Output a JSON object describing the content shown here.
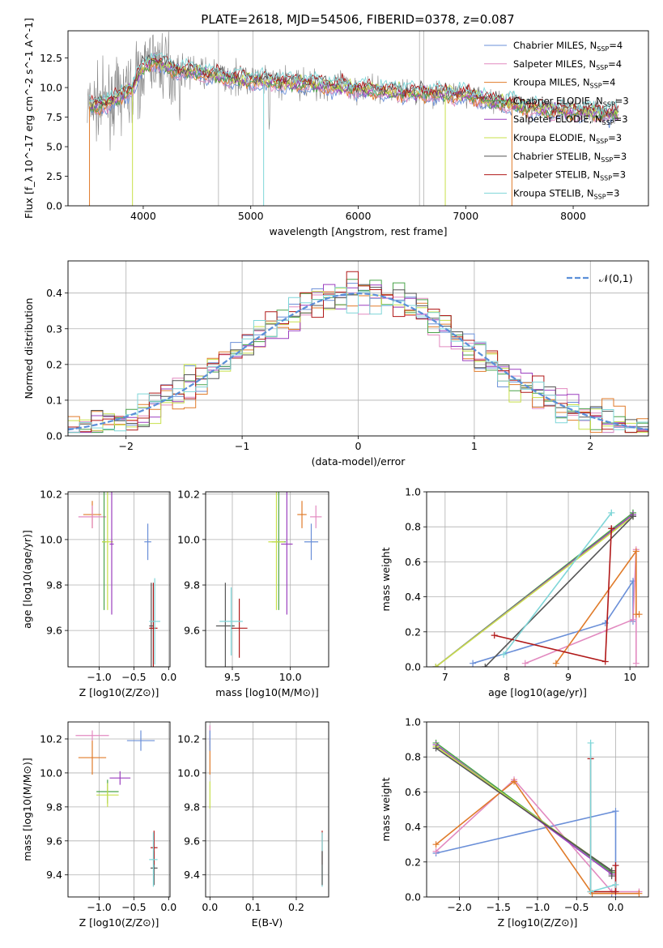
{
  "figure_title": "PLATE=2618, MJD=54506, FIBERID=0378, z=0.087",
  "colors": {
    "Chabrier MILES": "#6a8fd8",
    "Salpeter MILES": "#e28ac0",
    "Kroupa MILES": "#e07b2a",
    "Chabrier ELODIE": "#4aa34a",
    "Salpeter ELODIE": "#9b3fbf",
    "Kroupa ELODIE": "#c8e04a",
    "Chabrier STELIB": "#555555",
    "Salpeter STELIB": "#b01818",
    "Kroupa STELIB": "#7fd6d8",
    "data": "#808080",
    "normal": "#5b8fd8",
    "grid": "#b0b0b0"
  },
  "chart_data": [
    {
      "type": "line",
      "id": "spectrum",
      "title": "PLATE=2618, MJD=54506, FIBERID=0378, z=0.087",
      "xlabel": "wavelength [Angstrom, rest frame]",
      "ylabel": "Flux [f_λ 10^-17 erg cm^-2 s^-1 A^-1]",
      "xlim": [
        3300,
        8700
      ],
      "ylim": [
        0,
        14.8
      ],
      "xticks": [
        4000,
        5000,
        6000,
        7000,
        8000
      ],
      "yticks": [
        0.0,
        2.5,
        5.0,
        7.5,
        10.0,
        12.5
      ],
      "grid": false,
      "legend_position": "upper right",
      "legend": [
        "Chabrier MILES, N_SSP=4",
        "Salpeter MILES, N_SSP=4",
        "Kroupa MILES, N_SSP=4",
        "Chabrier ELODIE, N_SSP=3",
        "Salpeter ELODIE, N_SSP=3",
        "Kroupa ELODIE, N_SSP=3",
        "Chabrier STELIB, N_SSP=3",
        "Salpeter STELIB, N_SSP=3",
        "Kroupa STELIB, N_SSP=3"
      ],
      "continuum": {
        "x": [
          3500,
          3700,
          3900,
          4000,
          4100,
          4300,
          4500,
          4800,
          5200,
          5600,
          6000,
          6400,
          6800,
          7000,
          7200,
          7400,
          7600,
          7800,
          8000,
          8200,
          8400
        ],
        "y": [
          8.4,
          8.8,
          10.0,
          11.8,
          12.3,
          11.5,
          11.3,
          10.8,
          10.5,
          10.3,
          9.9,
          9.6,
          9.5,
          9.4,
          8.9,
          8.7,
          8.3,
          8.1,
          8.0,
          7.9,
          7.8
        ]
      }
    },
    {
      "type": "histogram",
      "id": "residuals",
      "xlabel": "(data-model)/error",
      "ylabel": "Normed distribution",
      "xlim": [
        -2.5,
        2.5
      ],
      "ylim": [
        0,
        0.49
      ],
      "xticks": [
        -2,
        -1,
        0,
        1,
        2
      ],
      "yticks": [
        0.0,
        0.1,
        0.2,
        0.3,
        0.4
      ],
      "grid": true,
      "legend": [
        "𝒩(0,1)"
      ],
      "legend_position": "upper right",
      "normal": {
        "mean": 0,
        "sigma": 1
      }
    },
    {
      "type": "errorbar",
      "id": "age-vs-Z",
      "xlabel": "Z [log10(Z/Z⊙)]",
      "ylabel": "age  [log10(age/yr)]",
      "xlim": [
        -1.45,
        0.02
      ],
      "ylim": [
        9.44,
        10.21
      ],
      "xticks": [
        -1.0,
        -0.5,
        0.0
      ],
      "yticks": [
        9.6,
        9.8,
        10.0,
        10.2
      ],
      "points": [
        {
          "model": "Kroupa MILES",
          "x": -1.1,
          "y": 10.11,
          "xerr": 0.13,
          "yerr": 0.06
        },
        {
          "model": "Salpeter MILES",
          "x": -1.1,
          "y": 10.1,
          "xerr": 0.2,
          "yerr": 0.05
        },
        {
          "model": "Chabrier MILES",
          "x": -0.3,
          "y": 9.99,
          "xerr": 0.05,
          "yerr": 0.08
        },
        {
          "model": "Chabrier ELODIE",
          "x": -0.93,
          "y": 9.99,
          "xerr": 0.03,
          "yerr": 0.3
        },
        {
          "model": "Kroupa ELODIE",
          "x": -0.88,
          "y": 9.99,
          "xerr": 0.08,
          "yerr": 0.3
        },
        {
          "model": "Salpeter ELODIE",
          "x": -0.82,
          "y": 9.98,
          "xerr": 0.03,
          "yerr": 0.31
        },
        {
          "model": "Chabrier STELIB",
          "x": -0.25,
          "y": 9.62,
          "xerr": 0.03,
          "yerr": 0.19
        },
        {
          "model": "Salpeter STELIB",
          "x": -0.22,
          "y": 9.61,
          "xerr": 0.06,
          "yerr": 0.2
        },
        {
          "model": "Kroupa STELIB",
          "x": -0.2,
          "y": 9.64,
          "xerr": 0.08,
          "yerr": 0.19
        }
      ]
    },
    {
      "type": "errorbar",
      "id": "age-vs-mass",
      "xlabel": "mass [log10(M/M⊙)]",
      "ylabel": "",
      "xlim": [
        9.27,
        10.33
      ],
      "ylim": [
        9.44,
        10.21
      ],
      "xticks": [
        9.5,
        10.0
      ],
      "yticks": [
        9.6,
        9.8,
        10.0,
        10.2
      ],
      "points": [
        {
          "model": "Kroupa MILES",
          "x": 10.1,
          "y": 10.11,
          "xerr": 0.04,
          "yerr": 0.06
        },
        {
          "model": "Salpeter MILES",
          "x": 10.22,
          "y": 10.1,
          "xerr": 0.05,
          "yerr": 0.05
        },
        {
          "model": "Chabrier MILES",
          "x": 10.18,
          "y": 9.99,
          "xerr": 0.06,
          "yerr": 0.08
        },
        {
          "model": "Chabrier ELODIE",
          "x": 9.9,
          "y": 9.99,
          "xerr": 0.06,
          "yerr": 0.3
        },
        {
          "model": "Kroupa ELODIE",
          "x": 9.88,
          "y": 9.99,
          "xerr": 0.07,
          "yerr": 0.3
        },
        {
          "model": "Salpeter ELODIE",
          "x": 9.97,
          "y": 9.98,
          "xerr": 0.05,
          "yerr": 0.31
        },
        {
          "model": "Chabrier STELIB",
          "x": 9.44,
          "y": 9.62,
          "xerr": 0.08,
          "yerr": 0.19
        },
        {
          "model": "Salpeter STELIB",
          "x": 9.56,
          "y": 9.61,
          "xerr": 0.07,
          "yerr": 0.13
        },
        {
          "model": "Kroupa STELIB",
          "x": 9.49,
          "y": 9.64,
          "xerr": 0.1,
          "yerr": 0.15
        }
      ]
    },
    {
      "type": "line",
      "id": "weight-vs-age",
      "xlabel": "age  [log10(age/yr)]",
      "ylabel": "mass weight",
      "xlim": [
        6.7,
        10.3
      ],
      "ylim": [
        0,
        1
      ],
      "xticks": [
        7,
        8,
        9,
        10
      ],
      "yticks": [
        0.0,
        0.2,
        0.4,
        0.6,
        0.8,
        1.0
      ],
      "grid": true,
      "series": [
        {
          "model": "Chabrier MILES",
          "x": [
            7.45,
            9.6,
            10.05,
            10.05
          ],
          "y": [
            0.02,
            0.25,
            0.49,
            0.26
          ]
        },
        {
          "model": "Salpeter MILES",
          "x": [
            8.3,
            10.05,
            10.1,
            10.1
          ],
          "y": [
            0.02,
            0.27,
            0.67,
            0.02
          ]
        },
        {
          "model": "Kroupa MILES",
          "x": [
            8.8,
            10.1,
            10.1,
            10.15
          ],
          "y": [
            0.02,
            0.66,
            0.3,
            0.3
          ]
        },
        {
          "model": "Chabrier ELODIE",
          "x": [
            6.85,
            10.05,
            10.05
          ],
          "y": [
            0.0,
            0.88,
            0.88
          ]
        },
        {
          "model": "Salpeter ELODIE",
          "x": [
            6.85,
            10.05,
            10.05
          ],
          "y": [
            0.0,
            0.87,
            0.87
          ]
        },
        {
          "model": "Kroupa ELODIE",
          "x": [
            6.85,
            10.05,
            10.05
          ],
          "y": [
            0.0,
            0.86,
            0.86
          ]
        },
        {
          "model": "Chabrier STELIB",
          "x": [
            7.65,
            10.05,
            10.05
          ],
          "y": [
            0.0,
            0.86,
            0.86
          ]
        },
        {
          "model": "Salpeter STELIB",
          "x": [
            7.8,
            9.6,
            9.7,
            9.7
          ],
          "y": [
            0.18,
            0.03,
            0.79,
            0.79
          ]
        },
        {
          "model": "Kroupa STELIB",
          "x": [
            7.95,
            9.7,
            9.7
          ],
          "y": [
            0.07,
            0.88,
            0.88
          ]
        }
      ]
    },
    {
      "type": "errorbar",
      "id": "mass-vs-Z",
      "xlabel": "Z [log10(Z/Z⊙)]",
      "ylabel": "mass [log10(M/M⊙)]",
      "xlim": [
        -1.45,
        0.02
      ],
      "ylim": [
        9.27,
        10.3
      ],
      "xticks": [
        -1.0,
        -0.5,
        0.0
      ],
      "yticks": [
        9.4,
        9.6,
        9.8,
        10.0,
        10.2
      ],
      "points": [
        {
          "model": "Salpeter MILES",
          "x": -1.1,
          "y": 10.22,
          "xerr": 0.24,
          "yerr": 0.03
        },
        {
          "model": "Kroupa MILES",
          "x": -1.1,
          "y": 10.09,
          "xerr": 0.2,
          "yerr": 0.1
        },
        {
          "model": "Chabrier MILES",
          "x": -0.4,
          "y": 10.19,
          "xerr": 0.2,
          "yerr": 0.06
        },
        {
          "model": "Chabrier ELODIE",
          "x": -0.88,
          "y": 9.89,
          "xerr": 0.16,
          "yerr": 0.07
        },
        {
          "model": "Kroupa ELODIE",
          "x": -0.88,
          "y": 9.87,
          "xerr": 0.16,
          "yerr": 0.07
        },
        {
          "model": "Salpeter ELODIE",
          "x": -0.7,
          "y": 9.97,
          "xerr": 0.15,
          "yerr": 0.04
        },
        {
          "model": "Chabrier STELIB",
          "x": -0.21,
          "y": 9.44,
          "xerr": 0.05,
          "yerr": 0.1
        },
        {
          "model": "Salpeter STELIB",
          "x": -0.21,
          "y": 9.56,
          "xerr": 0.05,
          "yerr": 0.1
        },
        {
          "model": "Kroupa STELIB",
          "x": -0.22,
          "y": 9.49,
          "xerr": 0.06,
          "yerr": 0.16
        }
      ]
    },
    {
      "type": "errorbar",
      "id": "mass-vs-ebv",
      "xlabel": "E(B-V)",
      "ylabel": "",
      "xlim": [
        -0.01,
        0.275
      ],
      "ylim": [
        9.27,
        10.3
      ],
      "xticks": [
        0.0,
        0.1,
        0.2
      ],
      "yticks": [
        9.4,
        9.6,
        9.8,
        10.0,
        10.2
      ],
      "points": [
        {
          "model": "Salpeter MILES",
          "x": 0.0,
          "y": 10.22,
          "xerr": 0.0,
          "yerr": 0.06
        },
        {
          "model": "Kroupa MILES",
          "x": 0.0,
          "y": 10.09,
          "xerr": 0.0,
          "yerr": 0.1
        },
        {
          "model": "Chabrier MILES",
          "x": 0.0,
          "y": 10.19,
          "xerr": 0.0,
          "yerr": 0.06
        },
        {
          "model": "Kroupa ELODIE",
          "x": 0.0,
          "y": 9.87,
          "xerr": 0.0,
          "yerr": 0.08
        },
        {
          "model": "Salpeter STELIB",
          "x": 0.26,
          "y": 9.56,
          "xerr": 0.0,
          "yerr": 0.1
        },
        {
          "model": "Kroupa STELIB",
          "x": 0.26,
          "y": 9.49,
          "xerr": 0.0,
          "yerr": 0.16
        },
        {
          "model": "Chabrier STELIB",
          "x": 0.26,
          "y": 9.44,
          "xerr": 0.0,
          "yerr": 0.1
        }
      ]
    },
    {
      "type": "line",
      "id": "weight-vs-Z",
      "xlabel": "Z [log10(Z/Z⊙)]",
      "ylabel": "mass weight",
      "xlim": [
        -2.42,
        0.42
      ],
      "ylim": [
        0,
        1
      ],
      "xticks": [
        -2.0,
        -1.5,
        -1.0,
        -0.5,
        0.0
      ],
      "yticks": [
        0.0,
        0.2,
        0.4,
        0.6,
        0.8,
        1.0
      ],
      "grid": true,
      "series": [
        {
          "model": "Chabrier MILES",
          "x": [
            -2.3,
            0.0,
            0.0,
            -0.05
          ],
          "y": [
            0.25,
            0.49,
            0.02,
            0.02
          ]
        },
        {
          "model": "Salpeter MILES",
          "x": [
            -2.3,
            -1.3,
            -0.05,
            0.3
          ],
          "y": [
            0.26,
            0.67,
            0.03,
            0.03
          ]
        },
        {
          "model": "Kroupa MILES",
          "x": [
            -2.3,
            -1.3,
            -0.3,
            0.3
          ],
          "y": [
            0.3,
            0.66,
            0.02,
            0.02
          ]
        },
        {
          "model": "Chabrier ELODIE",
          "x": [
            -2.3,
            -0.05,
            -0.05
          ],
          "y": [
            0.88,
            0.14,
            0.14
          ]
        },
        {
          "model": "Salpeter ELODIE",
          "x": [
            -2.3,
            -0.05,
            -0.05
          ],
          "y": [
            0.87,
            0.13,
            0.13
          ]
        },
        {
          "model": "Kroupa ELODIE",
          "x": [
            -2.3,
            -0.05,
            -0.05
          ],
          "y": [
            0.86,
            0.15,
            0.15
          ]
        },
        {
          "model": "Chabrier STELIB",
          "x": [
            -2.3,
            -0.05,
            -0.05
          ],
          "y": [
            0.85,
            0.15,
            0.12
          ]
        },
        {
          "model": "Salpeter STELIB",
          "x": [
            -0.32,
            -0.32,
            0.0,
            0.0
          ],
          "y": [
            0.79,
            0.03,
            0.03,
            0.18
          ]
        },
        {
          "model": "Kroupa STELIB",
          "x": [
            -0.32,
            -0.32,
            0.0
          ],
          "y": [
            0.88,
            0.03,
            0.07
          ]
        }
      ]
    }
  ]
}
